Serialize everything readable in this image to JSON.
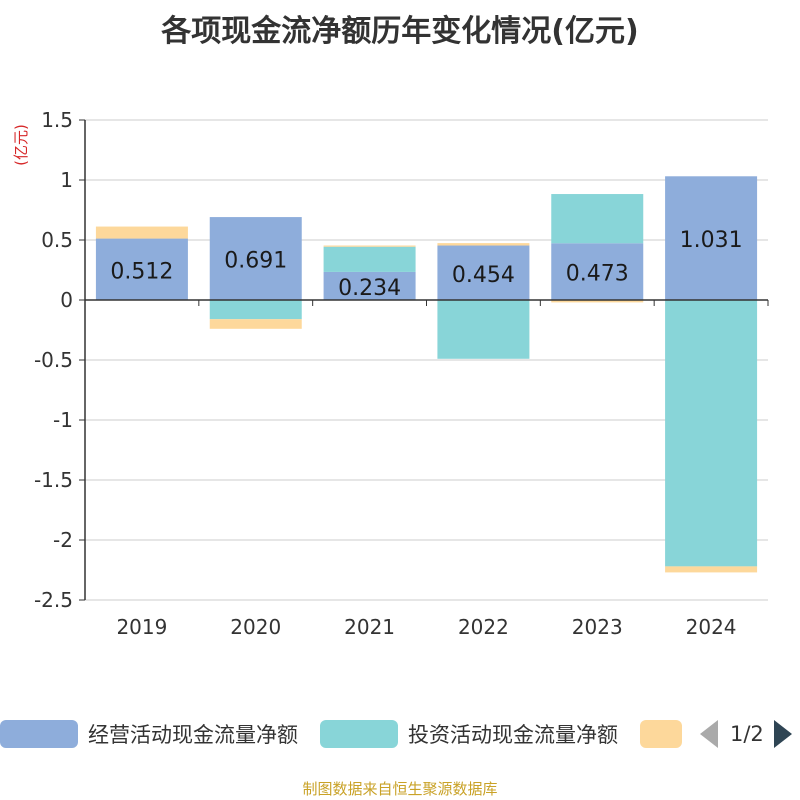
{
  "title": "各项现金流净额历年变化情况(亿元)",
  "source": "制图数据来自恒生聚源数据库",
  "legend": {
    "items": [
      {
        "label": "经营活动现金流量净额",
        "color": "#8eaddb"
      },
      {
        "label": "投资活动现金流量净额",
        "color": "#88d5d8"
      },
      {
        "label": "",
        "color": "#fdd89b"
      }
    ],
    "page": "1/2"
  },
  "chart_data": {
    "type": "bar",
    "stacked": true,
    "categories": [
      "2019",
      "2020",
      "2021",
      "2022",
      "2023",
      "2024"
    ],
    "ylabel": "(亿元)",
    "ylim": [
      -2.5,
      1.5
    ],
    "yticks": [
      1.5,
      1,
      0.5,
      0,
      -0.5,
      -1,
      -1.5,
      -2,
      -2.5
    ],
    "grid": true,
    "series": [
      {
        "name": "经营活动现金流量净额",
        "color": "#8eaddb",
        "values": [
          0.512,
          0.691,
          0.234,
          0.454,
          0.473,
          1.031
        ],
        "data_labels": [
          "0.512",
          "0.691",
          "0.234",
          "0.454",
          "0.473",
          "1.031"
        ]
      },
      {
        "color": "#88d5d8",
        "values": [
          0.0,
          -0.16,
          0.21,
          -0.49,
          0.41,
          -2.22
        ]
      },
      {
        "color": "#fdd89b",
        "values": [
          0.1,
          -0.08,
          0.01,
          0.02,
          -0.02,
          -0.05
        ]
      }
    ]
  }
}
